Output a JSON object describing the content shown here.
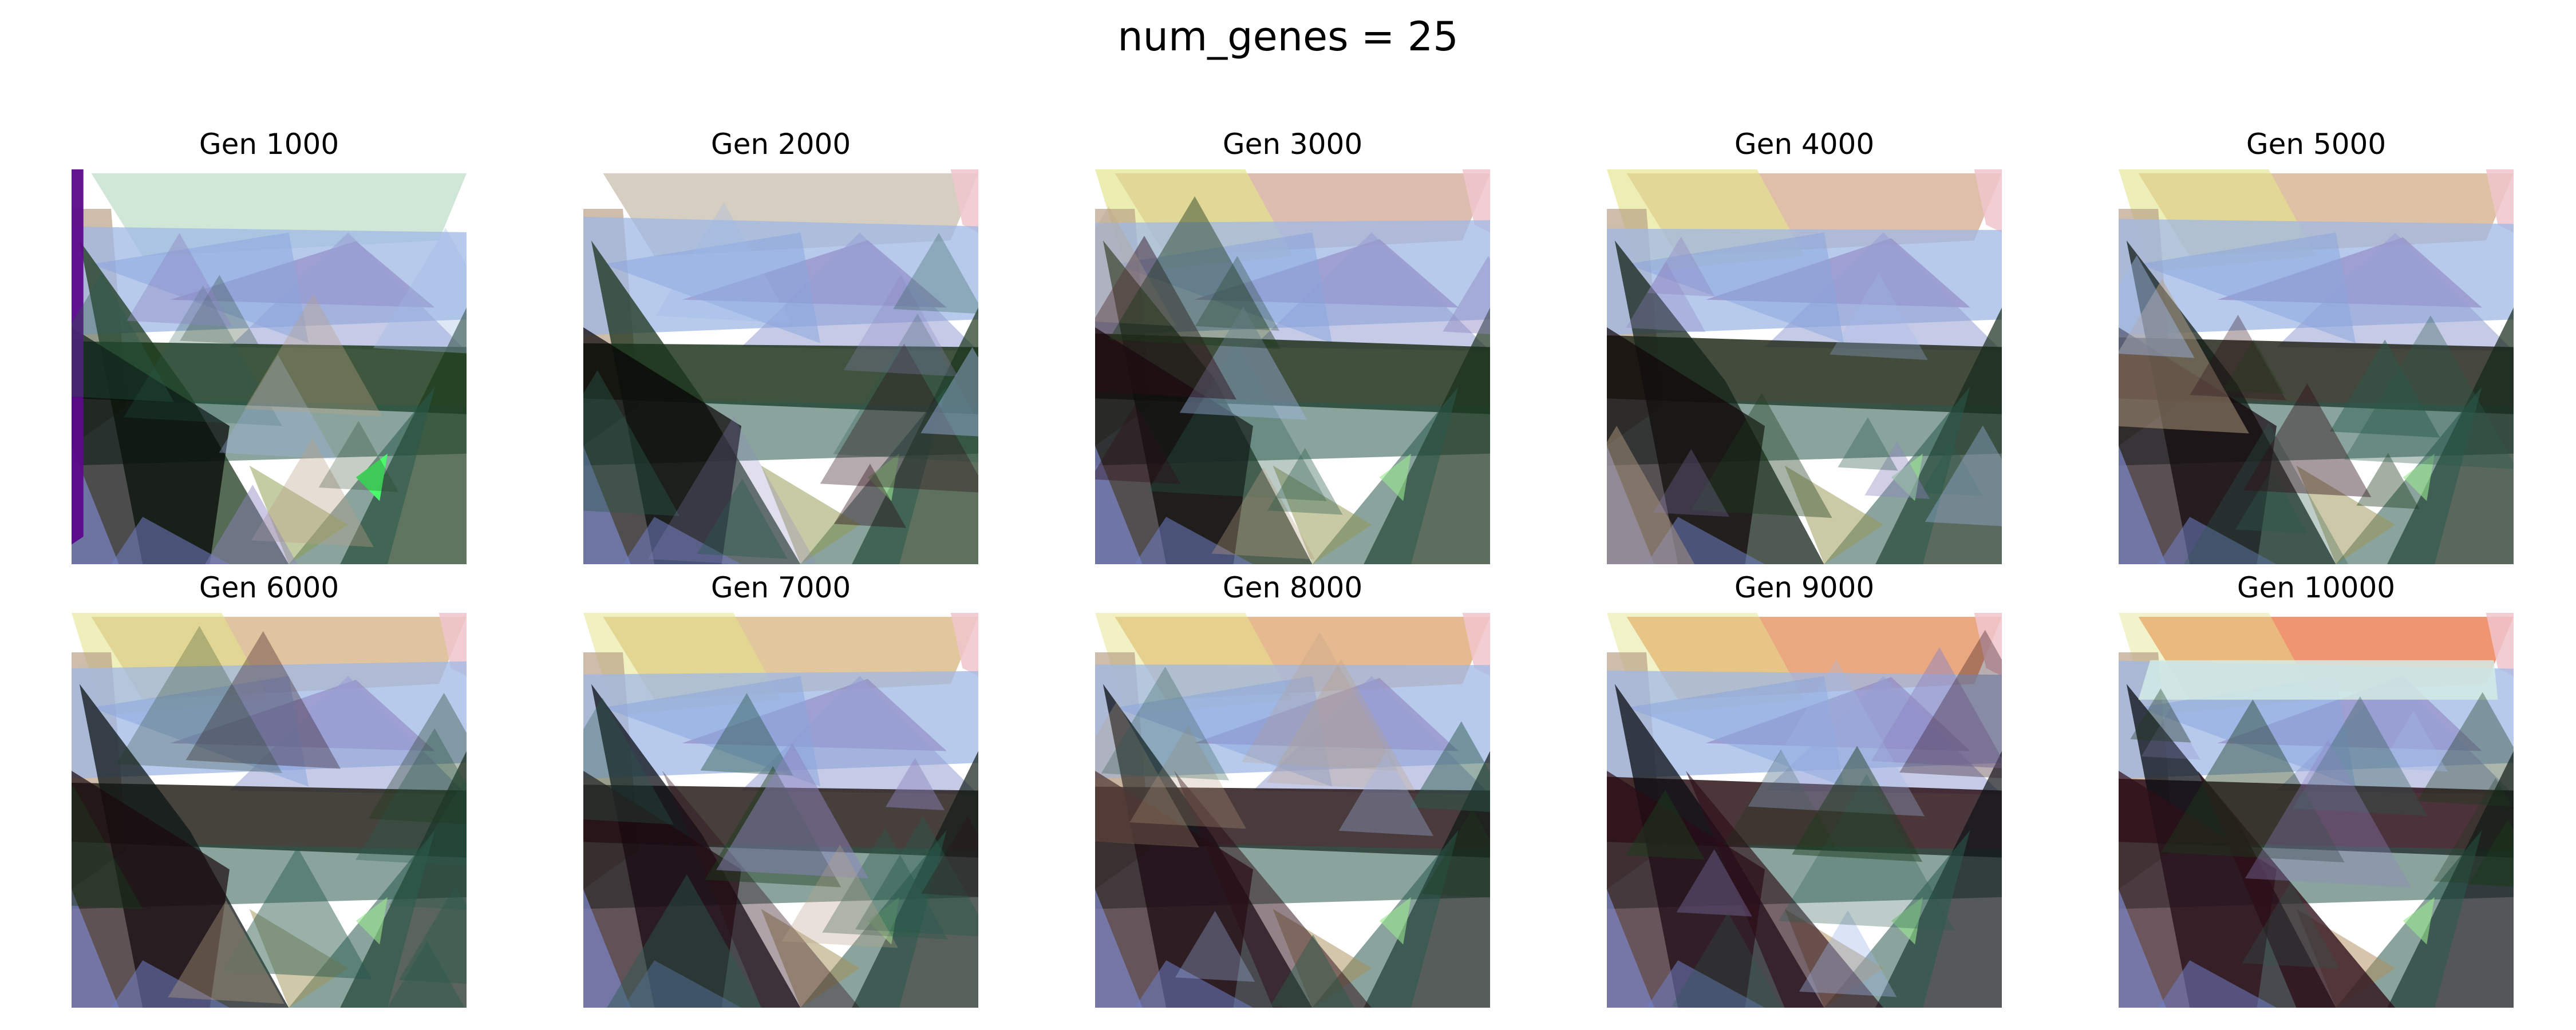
{
  "figure": {
    "title": "num_genes = 25",
    "panels": [
      {
        "label": "Gen 1000",
        "generation": 1000
      },
      {
        "label": "Gen 2000",
        "generation": 2000
      },
      {
        "label": "Gen 3000",
        "generation": 3000
      },
      {
        "label": "Gen 4000",
        "generation": 4000
      },
      {
        "label": "Gen 5000",
        "generation": 5000
      },
      {
        "label": "Gen 6000",
        "generation": 6000
      },
      {
        "label": "Gen 7000",
        "generation": 7000
      },
      {
        "label": "Gen 8000",
        "generation": 8000
      },
      {
        "label": "Gen 9000",
        "generation": 9000
      },
      {
        "label": "Gen 10000",
        "generation": 10000
      }
    ]
  },
  "colors": {
    "sky_early": "#cbe3d3",
    "sky_mid": "#d9b5a7",
    "sky_late": "#dfc18f",
    "sky_final": "#ee8a63",
    "yellow": "#e3e48c",
    "pink": "#f0c6cc",
    "blue_band": "#9fb8e6",
    "lavender": "#8d84c0",
    "dark_green": "#1c3a1c",
    "dark_maroon": "#2d0e18",
    "near_black": "#0b0e14",
    "teal": "#2a5a4c",
    "tan": "#b9a186",
    "light_green": "#9be88f",
    "bright_green": "#49ff6b",
    "violet_edge": "#5b0a8a"
  }
}
